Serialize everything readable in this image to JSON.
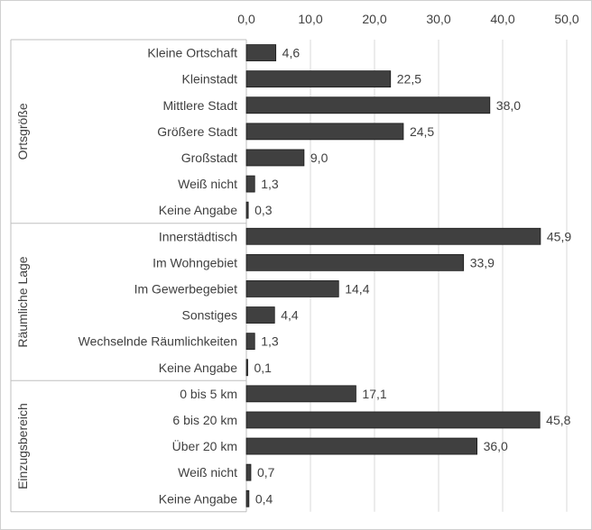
{
  "chart_data": {
    "type": "bar",
    "orientation": "horizontal",
    "xlim": [
      0,
      50
    ],
    "ticks": [
      "0,0",
      "10,0",
      "20,0",
      "30,0",
      "40,0",
      "50,0"
    ],
    "tick_values": [
      0,
      10,
      20,
      30,
      40,
      50
    ],
    "grid": true,
    "bar_color": "#404040",
    "groups": [
      {
        "label": "Ortsgröße",
        "categories": [
          "Kleine Ortschaft",
          "Kleinstadt",
          "Mittlere Stadt",
          "Größere Stadt",
          "Großstadt",
          "Weiß nicht",
          "Keine Angabe"
        ],
        "values": [
          4.6,
          22.5,
          38.0,
          24.5,
          9.0,
          1.3,
          0.3
        ],
        "value_labels": [
          "4,6",
          "22,5",
          "38,0",
          "24,5",
          "9,0",
          "1,3",
          "0,3"
        ]
      },
      {
        "label": "Räumliche Lage",
        "categories": [
          "Innerstädtisch",
          "Im Wohngebiet",
          "Im Gewerbegebiet",
          "Sonstiges",
          "Wechselnde Räumlichkeiten",
          "Keine Angabe"
        ],
        "values": [
          45.9,
          33.9,
          14.4,
          4.4,
          1.3,
          0.1
        ],
        "value_labels": [
          "45,9",
          "33,9",
          "14,4",
          "4,4",
          "1,3",
          "0,1"
        ]
      },
      {
        "label": "Einzugsbereich",
        "categories": [
          "0 bis 5 km",
          "6 bis 20 km",
          "Über 20 km",
          "Weiß nicht",
          "Keine Angabe"
        ],
        "values": [
          17.1,
          45.8,
          36.0,
          0.7,
          0.4
        ],
        "value_labels": [
          "17,1",
          "45,8",
          "36,0",
          "0,7",
          "0,4"
        ]
      }
    ]
  }
}
